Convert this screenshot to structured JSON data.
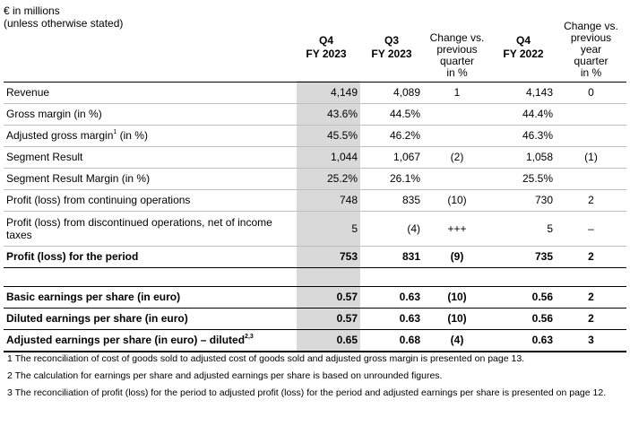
{
  "header": {
    "label_line1": "€ in millions",
    "label_line2": "(unless otherwise stated)",
    "col_q4fy23_line1": "Q4",
    "col_q4fy23_line2": "FY 2023",
    "col_q3fy23_line1": "Q3",
    "col_q3fy23_line2": "FY 2023",
    "col_chg_q_lines": [
      "Change vs.",
      "previous",
      "quarter",
      "in %"
    ],
    "col_q4fy22_line1": "Q4",
    "col_q4fy22_line2": "FY 2022",
    "col_chg_y_lines": [
      "Change vs.",
      "previous",
      "year",
      "quarter",
      "in %"
    ]
  },
  "rows": [
    {
      "label": "Revenue",
      "sup": "",
      "q4fy23": "4,149",
      "q3fy23": "4,089",
      "chg_q": "1",
      "q4fy22": "4,143",
      "chg_y": "0"
    },
    {
      "label": "Gross margin (in %)",
      "sup": "",
      "q4fy23": "43.6%",
      "q3fy23": "44.5%",
      "chg_q": "",
      "q4fy22": "44.4%",
      "chg_y": ""
    },
    {
      "label": "Adjusted gross margin",
      "sup": "1",
      "label_suffix": " (in %)",
      "q4fy23": "45.5%",
      "q3fy23": "46.2%",
      "chg_q": "",
      "q4fy22": "46.3%",
      "chg_y": ""
    },
    {
      "label": "Segment Result",
      "sup": "",
      "q4fy23": "1,044",
      "q3fy23": "1,067",
      "chg_q": "(2)",
      "q4fy22": "1,058",
      "chg_y": "(1)"
    },
    {
      "label": "Segment Result Margin (in %)",
      "sup": "",
      "q4fy23": "25.2%",
      "q3fy23": "26.1%",
      "chg_q": "",
      "q4fy22": "25.5%",
      "chg_y": ""
    },
    {
      "label": "Profit (loss) from continuing operations",
      "sup": "",
      "q4fy23": "748",
      "q3fy23": "835",
      "chg_q": "(10)",
      "q4fy22": "730",
      "chg_y": "2"
    },
    {
      "label": "Profit (loss) from discontinued operations, net of income taxes",
      "sup": "",
      "q4fy23": "5",
      "q3fy23": "(4)",
      "chg_q": "+++",
      "q4fy22": "5",
      "chg_y": "–"
    }
  ],
  "profit_row": {
    "label": "Profit (loss) for the period",
    "q4fy23": "753",
    "q3fy23": "831",
    "chg_q": "(9)",
    "q4fy22": "735",
    "chg_y": "2"
  },
  "eps_rows": [
    {
      "label": "Basic earnings per share (in euro)",
      "sup": "",
      "q4fy23": "0.57",
      "q3fy23": "0.63",
      "chg_q": "(10)",
      "q4fy22": "0.56",
      "chg_y": "2"
    },
    {
      "label": "Diluted earnings per share (in euro)",
      "sup": "",
      "q4fy23": "0.57",
      "q3fy23": "0.63",
      "chg_q": "(10)",
      "q4fy22": "0.56",
      "chg_y": "2"
    },
    {
      "label": "Adjusted earnings per share (in euro) – diluted",
      "sup": "2,3",
      "q4fy23": "0.65",
      "q3fy23": "0.68",
      "chg_q": "(4)",
      "q4fy22": "0.63",
      "chg_y": "3"
    }
  ],
  "footnotes": [
    "1 The reconciliation of cost of goods sold to adjusted cost of goods sold and adjusted gross margin is presented on page 13.",
    "2 The calculation for earnings per share and adjusted earnings per share is based on unrounded figures.",
    "3 The reconciliation of profit (loss) for the period to adjusted profit (loss) for the period and adjusted earnings per share is presented on page 12."
  ]
}
